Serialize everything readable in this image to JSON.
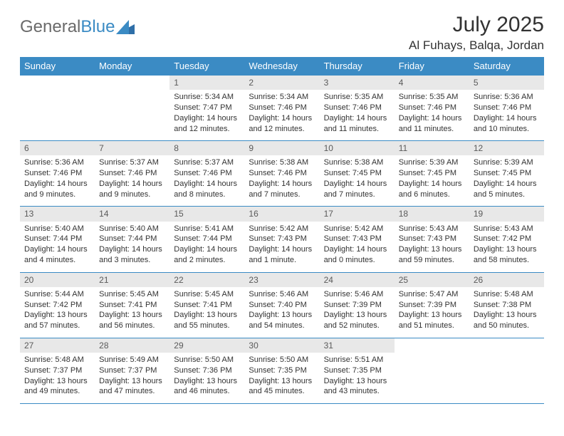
{
  "logo": {
    "text1": "General",
    "text2": "Blue"
  },
  "title": "July 2025",
  "location": "Al Fuhays, Balqa, Jordan",
  "colors": {
    "header_bg": "#3b8bc4",
    "header_text": "#ffffff",
    "daynum_bg": "#e8e8e8",
    "daynum_text": "#5a5a5a",
    "border": "#3b8bc4",
    "body_text": "#333333",
    "page_bg": "#ffffff",
    "logo_gray": "#6a6a6a",
    "logo_blue": "#3b8bc4"
  },
  "day_headers": [
    "Sunday",
    "Monday",
    "Tuesday",
    "Wednesday",
    "Thursday",
    "Friday",
    "Saturday"
  ],
  "weeks": [
    [
      null,
      null,
      {
        "n": "1",
        "sr": "5:34 AM",
        "ss": "7:47 PM",
        "dl": "14 hours and 12 minutes."
      },
      {
        "n": "2",
        "sr": "5:34 AM",
        "ss": "7:46 PM",
        "dl": "14 hours and 12 minutes."
      },
      {
        "n": "3",
        "sr": "5:35 AM",
        "ss": "7:46 PM",
        "dl": "14 hours and 11 minutes."
      },
      {
        "n": "4",
        "sr": "5:35 AM",
        "ss": "7:46 PM",
        "dl": "14 hours and 11 minutes."
      },
      {
        "n": "5",
        "sr": "5:36 AM",
        "ss": "7:46 PM",
        "dl": "14 hours and 10 minutes."
      }
    ],
    [
      {
        "n": "6",
        "sr": "5:36 AM",
        "ss": "7:46 PM",
        "dl": "14 hours and 9 minutes."
      },
      {
        "n": "7",
        "sr": "5:37 AM",
        "ss": "7:46 PM",
        "dl": "14 hours and 9 minutes."
      },
      {
        "n": "8",
        "sr": "5:37 AM",
        "ss": "7:46 PM",
        "dl": "14 hours and 8 minutes."
      },
      {
        "n": "9",
        "sr": "5:38 AM",
        "ss": "7:46 PM",
        "dl": "14 hours and 7 minutes."
      },
      {
        "n": "10",
        "sr": "5:38 AM",
        "ss": "7:45 PM",
        "dl": "14 hours and 7 minutes."
      },
      {
        "n": "11",
        "sr": "5:39 AM",
        "ss": "7:45 PM",
        "dl": "14 hours and 6 minutes."
      },
      {
        "n": "12",
        "sr": "5:39 AM",
        "ss": "7:45 PM",
        "dl": "14 hours and 5 minutes."
      }
    ],
    [
      {
        "n": "13",
        "sr": "5:40 AM",
        "ss": "7:44 PM",
        "dl": "14 hours and 4 minutes."
      },
      {
        "n": "14",
        "sr": "5:40 AM",
        "ss": "7:44 PM",
        "dl": "14 hours and 3 minutes."
      },
      {
        "n": "15",
        "sr": "5:41 AM",
        "ss": "7:44 PM",
        "dl": "14 hours and 2 minutes."
      },
      {
        "n": "16",
        "sr": "5:42 AM",
        "ss": "7:43 PM",
        "dl": "14 hours and 1 minute."
      },
      {
        "n": "17",
        "sr": "5:42 AM",
        "ss": "7:43 PM",
        "dl": "14 hours and 0 minutes."
      },
      {
        "n": "18",
        "sr": "5:43 AM",
        "ss": "7:43 PM",
        "dl": "13 hours and 59 minutes."
      },
      {
        "n": "19",
        "sr": "5:43 AM",
        "ss": "7:42 PM",
        "dl": "13 hours and 58 minutes."
      }
    ],
    [
      {
        "n": "20",
        "sr": "5:44 AM",
        "ss": "7:42 PM",
        "dl": "13 hours and 57 minutes."
      },
      {
        "n": "21",
        "sr": "5:45 AM",
        "ss": "7:41 PM",
        "dl": "13 hours and 56 minutes."
      },
      {
        "n": "22",
        "sr": "5:45 AM",
        "ss": "7:41 PM",
        "dl": "13 hours and 55 minutes."
      },
      {
        "n": "23",
        "sr": "5:46 AM",
        "ss": "7:40 PM",
        "dl": "13 hours and 54 minutes."
      },
      {
        "n": "24",
        "sr": "5:46 AM",
        "ss": "7:39 PM",
        "dl": "13 hours and 52 minutes."
      },
      {
        "n": "25",
        "sr": "5:47 AM",
        "ss": "7:39 PM",
        "dl": "13 hours and 51 minutes."
      },
      {
        "n": "26",
        "sr": "5:48 AM",
        "ss": "7:38 PM",
        "dl": "13 hours and 50 minutes."
      }
    ],
    [
      {
        "n": "27",
        "sr": "5:48 AM",
        "ss": "7:37 PM",
        "dl": "13 hours and 49 minutes."
      },
      {
        "n": "28",
        "sr": "5:49 AM",
        "ss": "7:37 PM",
        "dl": "13 hours and 47 minutes."
      },
      {
        "n": "29",
        "sr": "5:50 AM",
        "ss": "7:36 PM",
        "dl": "13 hours and 46 minutes."
      },
      {
        "n": "30",
        "sr": "5:50 AM",
        "ss": "7:35 PM",
        "dl": "13 hours and 45 minutes."
      },
      {
        "n": "31",
        "sr": "5:51 AM",
        "ss": "7:35 PM",
        "dl": "13 hours and 43 minutes."
      },
      null,
      null
    ]
  ],
  "labels": {
    "sunrise": "Sunrise:",
    "sunset": "Sunset:",
    "daylight": "Daylight:"
  }
}
